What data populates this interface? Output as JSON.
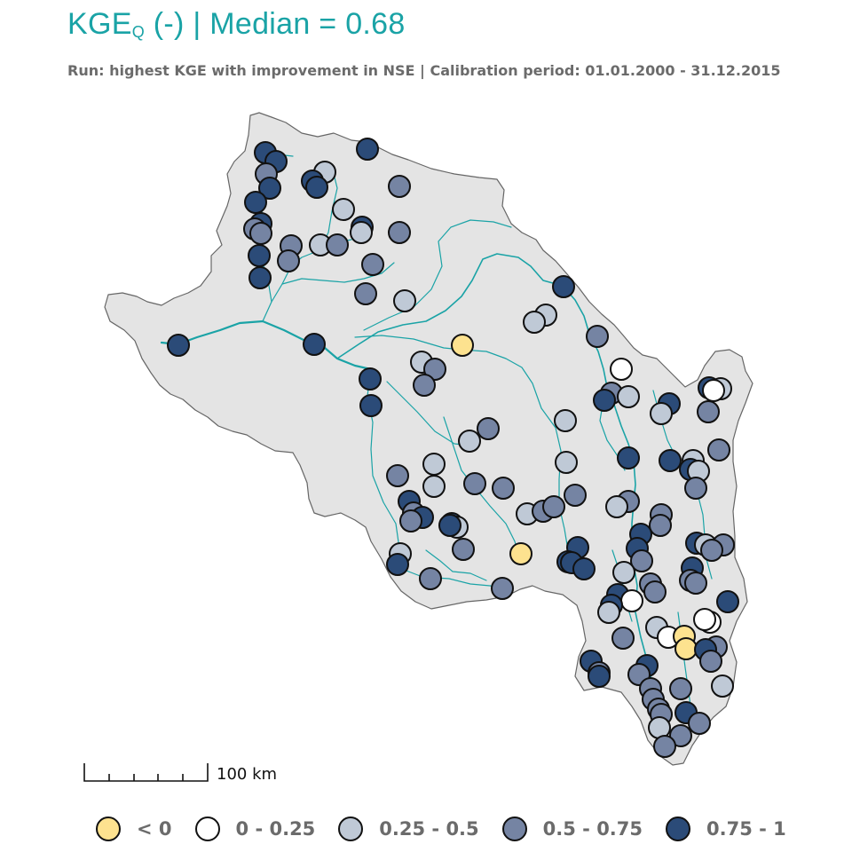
{
  "title": {
    "main": "KGE",
    "subscript": "Q",
    "rest": " (-) | Median = 0.68"
  },
  "subtitle": "Run: highest KGE with improvement in NSE | Calibration period: 01.01.2000 - 31.12.2015",
  "scale_bar": {
    "label": "100 km"
  },
  "colors": {
    "accent": "#1aa3a6",
    "basin_fill": "#e4e4e4",
    "basin_stroke": "#666666",
    "river": "#1aa3a6"
  },
  "legend": [
    {
      "label": "< 0",
      "class": "c0",
      "color": "#fde28f"
    },
    {
      "label": "0 - 0.25",
      "class": "c1",
      "color": "#ffffff"
    },
    {
      "label": "0.25 - 0.5",
      "class": "c2",
      "color": "#bfc9d6"
    },
    {
      "label": "0.5 - 0.75",
      "class": "c3",
      "color": "#7584a3"
    },
    {
      "label": "0.75 - 1",
      "class": "c4",
      "color": "#2b4b78"
    }
  ]
}
